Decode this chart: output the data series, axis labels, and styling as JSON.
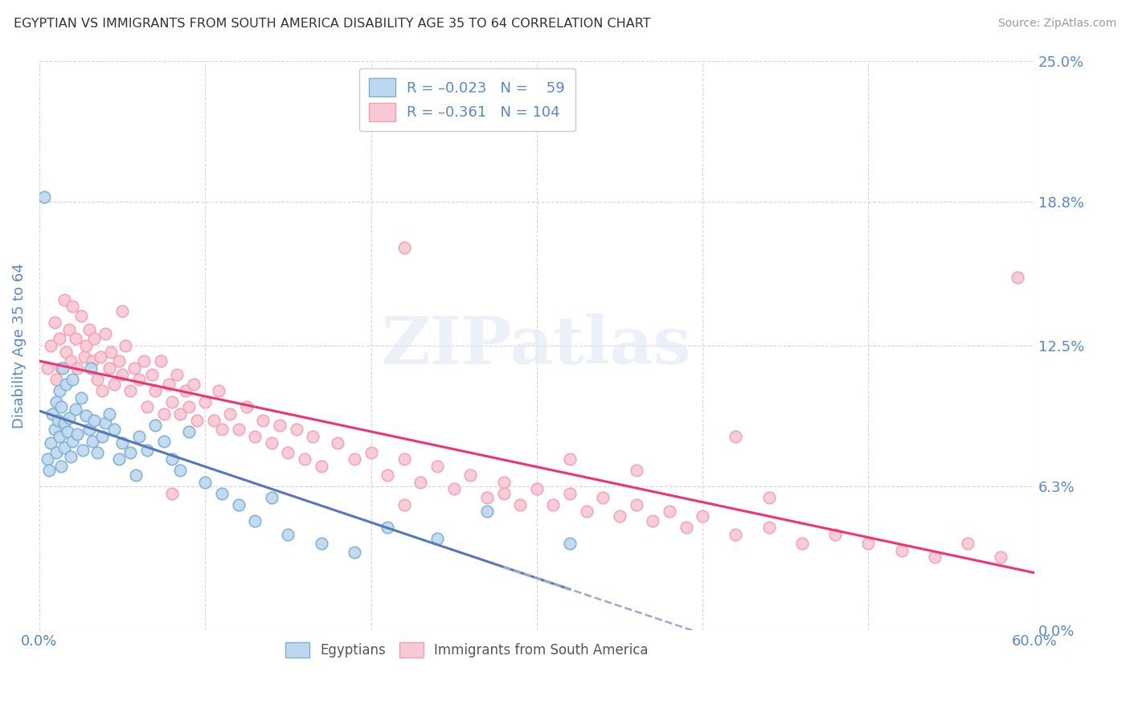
{
  "title": "EGYPTIAN VS IMMIGRANTS FROM SOUTH AMERICA DISABILITY AGE 35 TO 64 CORRELATION CHART",
  "source": "Source: ZipAtlas.com",
  "ylabel": "Disability Age 35 to 64",
  "xmin": 0.0,
  "xmax": 0.6,
  "ymin": 0.0,
  "ymax": 0.25,
  "yticks": [
    0.0,
    0.063,
    0.125,
    0.188,
    0.25
  ],
  "ytick_labels": [
    "0.0%",
    "6.3%",
    "12.5%",
    "18.8%",
    "25.0%"
  ],
  "xticks": [
    0.0,
    0.1,
    0.2,
    0.3,
    0.4,
    0.5,
    0.6
  ],
  "blue_color": "#7BAFD4",
  "pink_color": "#F4A0B0",
  "blue_fill": "#BDD7EE",
  "pink_fill": "#F8C8D4",
  "trend_blue_solid": "#5577BB",
  "trend_pink_solid": "#EE3377",
  "trend_blue_dash": "#99AACC",
  "watermark": "ZIPatlas",
  "background_color": "#FFFFFF",
  "grid_color": "#CCCCCC",
  "axis_label_color": "#5588CC",
  "title_color": "#333333",
  "blue_x": [
    0.003,
    0.005,
    0.006,
    0.007,
    0.008,
    0.009,
    0.01,
    0.01,
    0.011,
    0.012,
    0.012,
    0.013,
    0.013,
    0.014,
    0.015,
    0.015,
    0.016,
    0.017,
    0.018,
    0.019,
    0.02,
    0.02,
    0.022,
    0.023,
    0.025,
    0.026,
    0.028,
    0.03,
    0.031,
    0.032,
    0.033,
    0.035,
    0.038,
    0.04,
    0.042,
    0.045,
    0.048,
    0.05,
    0.055,
    0.058,
    0.06,
    0.065,
    0.07,
    0.075,
    0.08,
    0.085,
    0.09,
    0.1,
    0.11,
    0.12,
    0.13,
    0.14,
    0.15,
    0.17,
    0.19,
    0.21,
    0.24,
    0.27,
    0.32
  ],
  "blue_y": [
    0.19,
    0.075,
    0.07,
    0.082,
    0.095,
    0.088,
    0.1,
    0.078,
    0.092,
    0.105,
    0.085,
    0.098,
    0.072,
    0.115,
    0.08,
    0.091,
    0.108,
    0.087,
    0.093,
    0.076,
    0.11,
    0.083,
    0.097,
    0.086,
    0.102,
    0.079,
    0.094,
    0.088,
    0.115,
    0.083,
    0.092,
    0.078,
    0.085,
    0.091,
    0.095,
    0.088,
    0.075,
    0.082,
    0.078,
    0.068,
    0.085,
    0.079,
    0.09,
    0.083,
    0.075,
    0.07,
    0.087,
    0.065,
    0.06,
    0.055,
    0.048,
    0.058,
    0.042,
    0.038,
    0.034,
    0.045,
    0.04,
    0.052,
    0.038
  ],
  "pink_x": [
    0.005,
    0.007,
    0.009,
    0.01,
    0.012,
    0.013,
    0.015,
    0.016,
    0.018,
    0.019,
    0.02,
    0.022,
    0.023,
    0.025,
    0.027,
    0.028,
    0.03,
    0.032,
    0.033,
    0.035,
    0.037,
    0.038,
    0.04,
    0.042,
    0.043,
    0.045,
    0.048,
    0.05,
    0.052,
    0.055,
    0.057,
    0.06,
    0.063,
    0.065,
    0.068,
    0.07,
    0.073,
    0.075,
    0.078,
    0.08,
    0.083,
    0.085,
    0.088,
    0.09,
    0.093,
    0.095,
    0.1,
    0.105,
    0.108,
    0.11,
    0.115,
    0.12,
    0.125,
    0.13,
    0.135,
    0.14,
    0.145,
    0.15,
    0.155,
    0.16,
    0.165,
    0.17,
    0.18,
    0.19,
    0.2,
    0.21,
    0.22,
    0.23,
    0.24,
    0.25,
    0.26,
    0.27,
    0.28,
    0.29,
    0.3,
    0.31,
    0.32,
    0.33,
    0.34,
    0.35,
    0.36,
    0.37,
    0.38,
    0.39,
    0.4,
    0.42,
    0.44,
    0.46,
    0.48,
    0.5,
    0.52,
    0.54,
    0.56,
    0.58,
    0.32,
    0.22,
    0.42,
    0.05,
    0.36,
    0.59,
    0.08,
    0.28,
    0.44,
    0.22
  ],
  "pink_y": [
    0.115,
    0.125,
    0.135,
    0.11,
    0.128,
    0.115,
    0.145,
    0.122,
    0.132,
    0.118,
    0.142,
    0.128,
    0.115,
    0.138,
    0.12,
    0.125,
    0.132,
    0.118,
    0.128,
    0.11,
    0.12,
    0.105,
    0.13,
    0.115,
    0.122,
    0.108,
    0.118,
    0.112,
    0.125,
    0.105,
    0.115,
    0.11,
    0.118,
    0.098,
    0.112,
    0.105,
    0.118,
    0.095,
    0.108,
    0.1,
    0.112,
    0.095,
    0.105,
    0.098,
    0.108,
    0.092,
    0.1,
    0.092,
    0.105,
    0.088,
    0.095,
    0.088,
    0.098,
    0.085,
    0.092,
    0.082,
    0.09,
    0.078,
    0.088,
    0.075,
    0.085,
    0.072,
    0.082,
    0.075,
    0.078,
    0.068,
    0.075,
    0.065,
    0.072,
    0.062,
    0.068,
    0.058,
    0.065,
    0.055,
    0.062,
    0.055,
    0.06,
    0.052,
    0.058,
    0.05,
    0.055,
    0.048,
    0.052,
    0.045,
    0.05,
    0.042,
    0.045,
    0.038,
    0.042,
    0.038,
    0.035,
    0.032,
    0.038,
    0.032,
    0.075,
    0.168,
    0.085,
    0.14,
    0.07,
    0.155,
    0.06,
    0.06,
    0.058,
    0.055
  ]
}
